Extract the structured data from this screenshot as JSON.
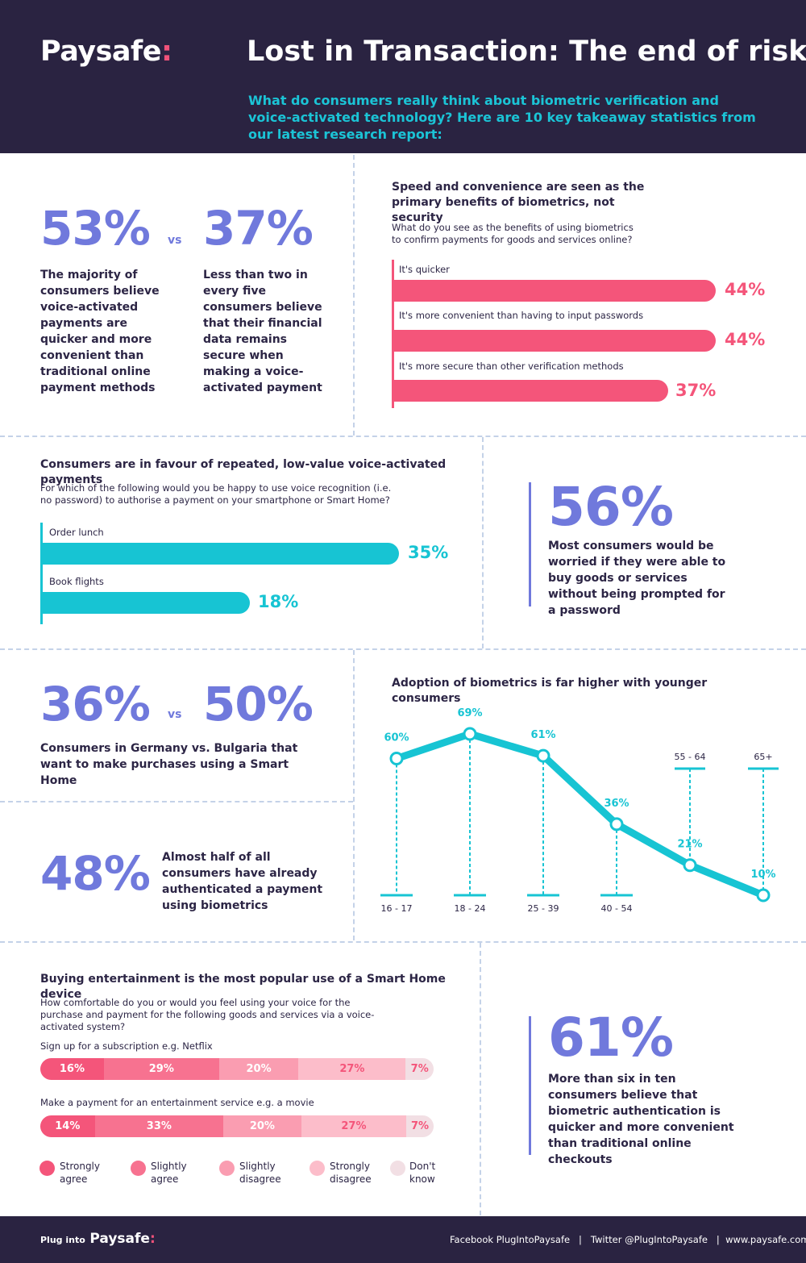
{
  "header": {
    "logo": "Paysafe",
    "logo_colon": ":",
    "title": "Lost in Transaction: The end of risk?",
    "subtitle": "What do consumers really think about biometric verification and voice-activated technology? Here are 10 key takeaway statistics from our latest research report:"
  },
  "stat1": {
    "a": "53%",
    "vs": "vs",
    "b": "37%",
    "a_desc": "The majority of consumers believe voice-activated payments are quicker and more convenient than traditional online payment methods",
    "b_desc": "Less than two in every five consumers believe that their financial data remains secure when making a voice-activated payment"
  },
  "benefits": {
    "title": "Speed and convenience are seen as the primary benefits of biometrics, not security",
    "question": "What do you see as the benefits of using biometrics to confirm payments for goods and services online?",
    "items": [
      {
        "label": "It's quicker",
        "value": 44,
        "text": "44%"
      },
      {
        "label": "It's more convenient than having to input passwords",
        "value": 44,
        "text": "44%"
      },
      {
        "label": "It's more secure than other verification methods",
        "value": 37,
        "text": "37%"
      }
    ],
    "color": "#f4557a"
  },
  "voice": {
    "title": "Consumers are in favour of repeated, low-value voice-activated payments",
    "question": "For which of the following would you be happy to use voice recognition (i.e. no password) to authorise a payment on your smartphone or Smart Home?",
    "items": [
      {
        "label": "Order lunch",
        "value": 35,
        "text": "35%"
      },
      {
        "label": "Book flights",
        "value": 18,
        "text": "18%"
      }
    ],
    "color": "#17c4d3"
  },
  "stat56": {
    "value": "56%",
    "desc": "Most consumers would be worried if they were able to buy goods or services without being prompted for a password"
  },
  "stat36": {
    "a": "36%",
    "vs": "vs",
    "b": "50%",
    "desc": "Consumers in Germany vs. Bulgaria that want to make purchases using a Smart Home"
  },
  "stat48": {
    "value": "48%",
    "desc": "Almost half of all consumers have already authenticated a payment using biometrics"
  },
  "chart_data": {
    "type": "line",
    "title": "Adoption of biometrics is far higher with younger consumers",
    "categories": [
      "16 - 17",
      "18 - 24",
      "25 - 39",
      "40 - 54",
      "55 - 64",
      "65+"
    ],
    "values": [
      60,
      69,
      61,
      36,
      21,
      10
    ],
    "labels": [
      "60%",
      "69%",
      "61%",
      "36%",
      "21%",
      "10%"
    ],
    "color": "#17c4d3"
  },
  "entertainment": {
    "title": "Buying entertainment is the most popular use of a Smart Home device",
    "question": "How comfortable do you or would you feel using your voice for the purchase and payment for the following goods and services via a voice-activated system?",
    "rows": [
      {
        "label": "Sign up for a subscription e.g. Netflix",
        "values": [
          16,
          29,
          20,
          27,
          7
        ],
        "texts": [
          "16%",
          "29%",
          "20%",
          "27%",
          "7%"
        ]
      },
      {
        "label": "Make a payment for an entertainment service e.g. a movie",
        "values": [
          14,
          33,
          20,
          27,
          7
        ],
        "texts": [
          "14%",
          "33%",
          "20%",
          "27%",
          "7%"
        ]
      }
    ],
    "legend": [
      {
        "label": "Strongly agree",
        "color": "#f4557a"
      },
      {
        "label": "Slightly agree",
        "color": "#f77290"
      },
      {
        "label": "Slightly disagree",
        "color": "#fa9db1"
      },
      {
        "label": "Strongly disagree",
        "color": "#fcbdca"
      },
      {
        "label": "Don't know",
        "color": "#f2dfe4"
      }
    ]
  },
  "stat61": {
    "value": "61%",
    "desc": "More than six in ten consumers believe that biometric authentication is quicker and more convenient than traditional online checkouts"
  },
  "footer": {
    "plug": "Plug into",
    "brand": "Paysafe",
    "colon": ":",
    "links": "Facebook PlugIntoPaysafe   |   Twitter @PlugIntoPaysafe   |  www.paysafe.com"
  }
}
